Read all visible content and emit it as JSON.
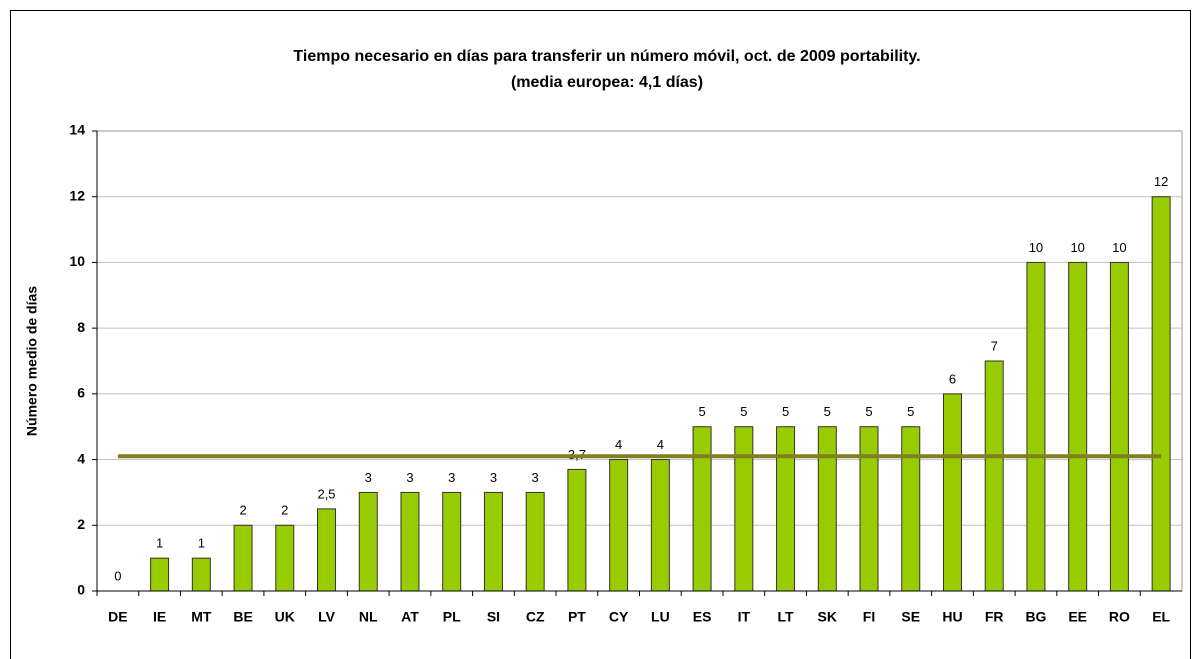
{
  "chart_data": {
    "type": "bar",
    "title": "Tiempo necesario en días para transferir un número móvil, oct. de 2009   portability.",
    "subtitle": "(media europea: 4,1 días)",
    "y_label": "Número medio de días",
    "categories": [
      "DE",
      "IE",
      "MT",
      "BE",
      "UK",
      "LV",
      "NL",
      "AT",
      "PL",
      "SI",
      "CZ",
      "PT",
      "CY",
      "LU",
      "ES",
      "IT",
      "LT",
      "SK",
      "FI",
      "SE",
      "HU",
      "FR",
      "BG",
      "EE",
      "RO",
      "EL"
    ],
    "values": [
      0,
      1,
      1,
      2,
      2,
      2.5,
      3,
      3,
      3,
      3,
      3,
      3.7,
      4,
      4,
      5,
      5,
      5,
      5,
      5,
      5,
      6,
      7,
      10,
      10,
      10,
      12
    ],
    "value_labels": [
      "0",
      "1",
      "1",
      "2",
      "2",
      "2,5",
      "3",
      "3",
      "3",
      "3",
      "3",
      "3,7",
      "4",
      "4",
      "5",
      "5",
      "5",
      "5",
      "5",
      "5",
      "6",
      "7",
      "10",
      "10",
      "10",
      "12"
    ],
    "average": 4.1,
    "average_color": "#808020",
    "color": "#99cc00",
    "ylim": [
      0,
      14
    ],
    "yticks": [
      0,
      2,
      4,
      6,
      8,
      10,
      12,
      14
    ],
    "grid": true
  }
}
